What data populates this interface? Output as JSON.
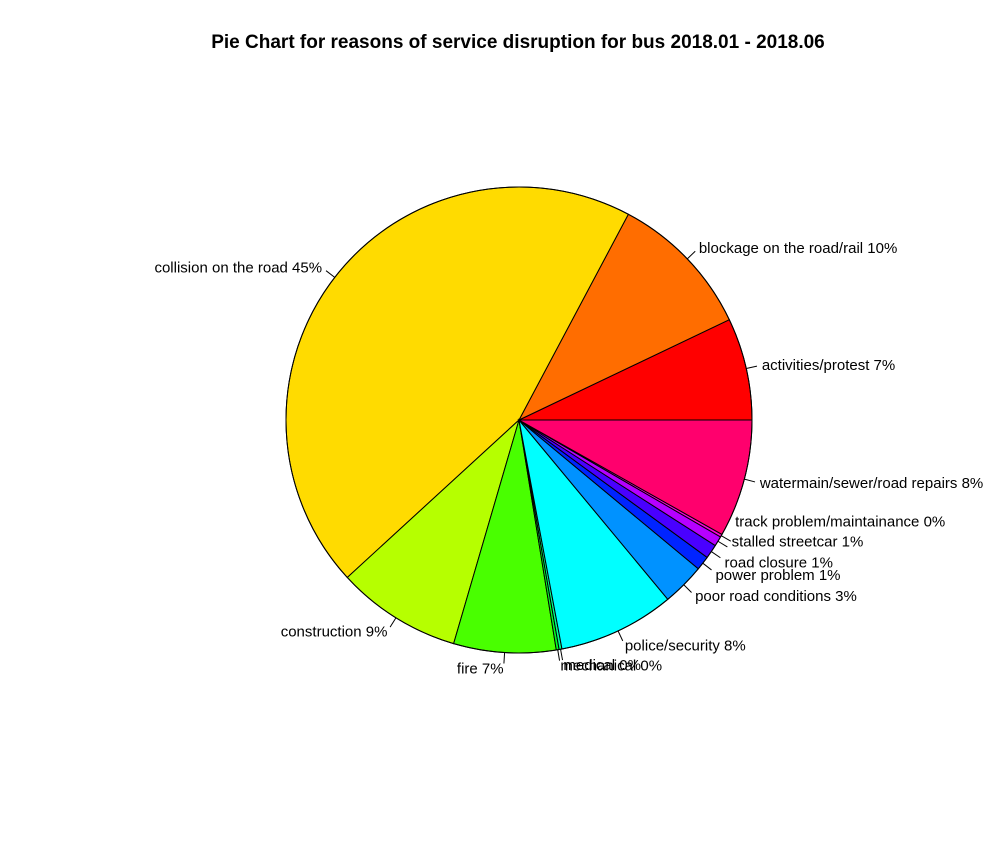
{
  "chart_data": {
    "type": "pie",
    "title": "Pie Chart for reasons of service disruption for bus 2018.01 - 2018.06",
    "direction": "counterclockwise",
    "start": "3 o'clock",
    "slices": [
      {
        "label": "activities/protest 7%",
        "value": 7.2,
        "color": "#FF0000"
      },
      {
        "label": "blockage on the road/rail 10%",
        "value": 10.3,
        "color": "#FF6D00"
      },
      {
        "label": "collision on the road 45%",
        "value": 45.3,
        "color": "#FFDB00"
      },
      {
        "label": "construction 9%",
        "value": 8.8,
        "color": "#B6FF00"
      },
      {
        "label": "fire 7%",
        "value": 7.2,
        "color": "#49FF00"
      },
      {
        "label": "mechanical 0%",
        "value": 0.2,
        "color": "#00FF24"
      },
      {
        "label": "medical 0%",
        "value": 0.2,
        "color": "#00FF92"
      },
      {
        "label": "police/security 8%",
        "value": 8.2,
        "color": "#00FFFF"
      },
      {
        "label": "poor road conditions 3%",
        "value": 3.0,
        "color": "#0092FF"
      },
      {
        "label": "power problem 1%",
        "value": 1.0,
        "color": "#0024FF"
      },
      {
        "label": "road closure 1%",
        "value": 1.0,
        "color": "#4900FF"
      },
      {
        "label": "stalled streetcar 1%",
        "value": 0.7,
        "color": "#B600FF"
      },
      {
        "label": "track problem/maintainance 0%",
        "value": 0.2,
        "color": "#FF00DB"
      },
      {
        "label": "watermain/sewer/road repairs 8%",
        "value": 8.3,
        "color": "#FF006D"
      }
    ]
  }
}
